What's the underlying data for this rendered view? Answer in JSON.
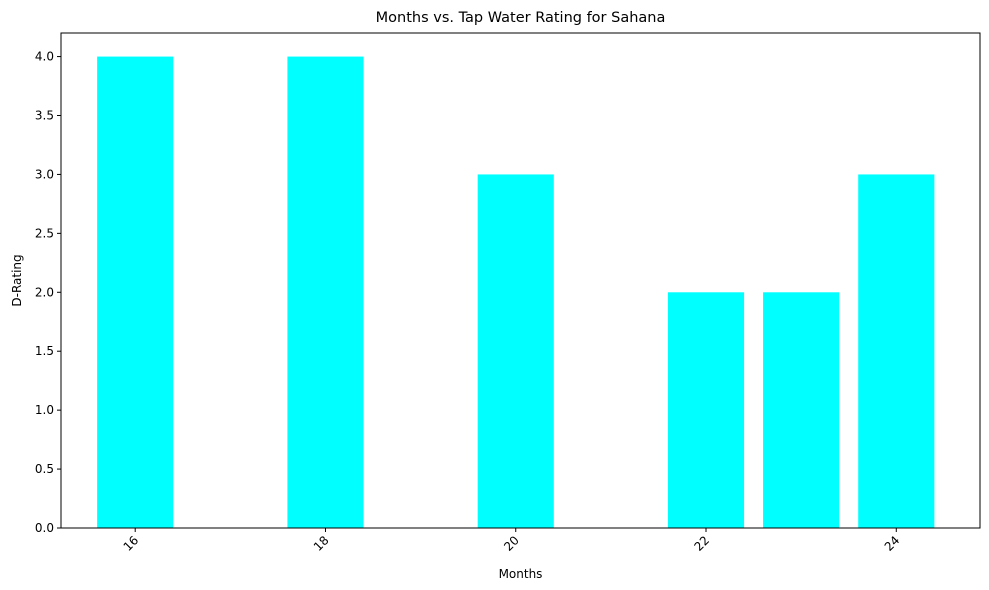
{
  "chart_data": {
    "type": "bar",
    "title": "Months vs. Tap Water Rating for Sahana",
    "xlabel": "Months",
    "ylabel": "D-Rating",
    "x": [
      16,
      18,
      20,
      22,
      23,
      24
    ],
    "values": [
      4,
      4,
      3,
      2,
      2,
      3
    ],
    "xticks": [
      "16",
      "18",
      "20",
      "22",
      "24"
    ],
    "yticks": [
      "0.0",
      "0.5",
      "1.0",
      "1.5",
      "2.0",
      "2.5",
      "3.0",
      "3.5",
      "4.0"
    ],
    "xlim": [
      15.22,
      24.88
    ],
    "ylim": [
      0,
      4.2
    ],
    "bar_width": 0.8,
    "bar_color": "#00ffff",
    "grid": false,
    "legend": "none"
  }
}
